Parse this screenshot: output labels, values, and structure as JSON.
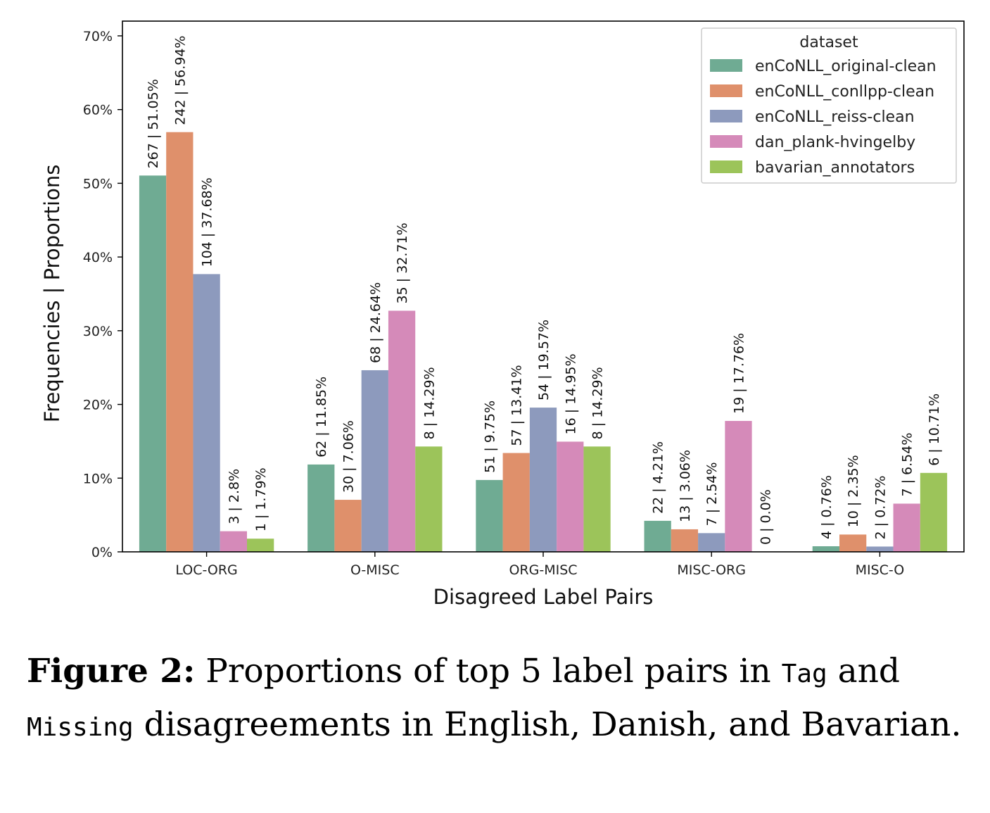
{
  "chart_data": {
    "type": "bar",
    "xlabel": "Disagreed Label Pairs",
    "ylabel": "Frequencies | Proportions",
    "ylim": [
      0,
      72
    ],
    "yticks": [
      "0%",
      "10%",
      "20%",
      "30%",
      "40%",
      "50%",
      "60%",
      "70%"
    ],
    "ytick_values": [
      0,
      10,
      20,
      30,
      40,
      50,
      60,
      70
    ],
    "categories": [
      "LOC-ORG",
      "O-MISC",
      "ORG-MISC",
      "MISC-ORG",
      "MISC-O"
    ],
    "legend": {
      "title": "dataset",
      "position": "top-right"
    },
    "grid": false,
    "series": [
      {
        "name": "enCoNLL_original-clean",
        "color": "#6fab93",
        "values": [
          51.05,
          11.85,
          9.75,
          4.21,
          0.76
        ],
        "labels": [
          "267 | 51.05%",
          "62 | 11.85%",
          "51 | 9.75%",
          "22 | 4.21%",
          "4 | 0.76%"
        ]
      },
      {
        "name": "enCoNLL_conllpp-clean",
        "color": "#df906b",
        "values": [
          56.94,
          7.06,
          13.41,
          3.06,
          2.35
        ],
        "labels": [
          "242 | 56.94%",
          "30 | 7.06%",
          "57 | 13.41%",
          "13 | 3.06%",
          "10 | 2.35%"
        ]
      },
      {
        "name": "enCoNLL_reiss-clean",
        "color": "#8d9abd",
        "values": [
          37.68,
          24.64,
          19.57,
          2.54,
          0.72
        ],
        "labels": [
          "104 | 37.68%",
          "68 | 24.64%",
          "54 | 19.57%",
          "7 | 2.54%",
          "2 | 0.72%"
        ]
      },
      {
        "name": "dan_plank-hvingelby",
        "color": "#d58ab9",
        "values": [
          2.8,
          32.71,
          14.95,
          17.76,
          6.54
        ],
        "labels": [
          "3 | 2.8%",
          "35 | 32.71%",
          "16 | 14.95%",
          "19 | 17.76%",
          "7 | 6.54%"
        ]
      },
      {
        "name": "bavarian_annotators",
        "color": "#9cc45a",
        "values": [
          1.79,
          14.29,
          14.29,
          0.0,
          10.71
        ],
        "labels": [
          "1 | 1.79%",
          "8 | 14.29%",
          "8 | 14.29%",
          "0 | 0.0%",
          "6 | 10.71%"
        ]
      }
    ]
  },
  "caption": {
    "figure_label": "Figure 2:",
    "text_1": " Proportions of top 5 label pairs in ",
    "mono_1": "Tag",
    "text_2": " and ",
    "mono_2": "Missing",
    "text_3": " disagreements in English, Danish, and Bavarian."
  }
}
